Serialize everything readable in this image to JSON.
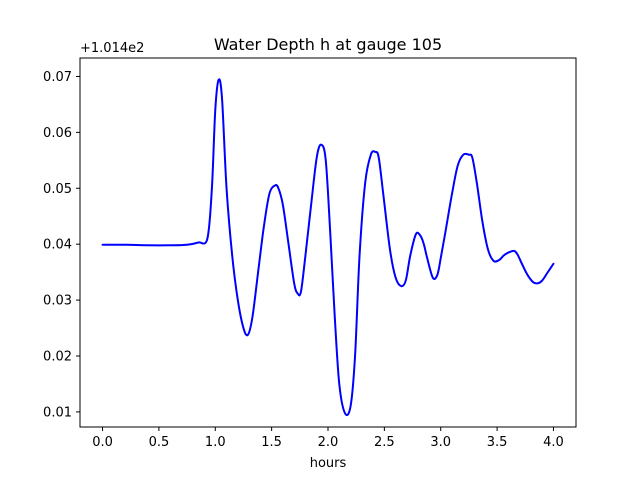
{
  "chart_data": {
    "type": "line",
    "title": "Water Depth h at gauge 105",
    "xlabel": "hours",
    "ylabel": "",
    "offset_label": "+1.014e2",
    "xlim": [
      -0.2,
      4.2
    ],
    "ylim": [
      0.0073,
      0.0733
    ],
    "grid": false,
    "legend": "none",
    "xticks": [
      0.0,
      0.5,
      1.0,
      1.5,
      2.0,
      2.5,
      3.0,
      3.5,
      4.0
    ],
    "xtick_labels": [
      "0.0",
      "0.5",
      "1.0",
      "1.5",
      "2.0",
      "2.5",
      "3.0",
      "3.5",
      "4.0"
    ],
    "yticks": [
      0.01,
      0.02,
      0.03,
      0.04,
      0.05,
      0.06,
      0.07
    ],
    "ytick_labels": [
      "0.01",
      "0.02",
      "0.03",
      "0.04",
      "0.05",
      "0.06",
      "0.07"
    ],
    "series": [
      {
        "color": "#0000ff",
        "x": [
          0.0,
          0.2,
          0.4,
          0.6,
          0.75,
          0.85,
          0.93,
          0.97,
          1.0,
          1.03,
          1.06,
          1.1,
          1.15,
          1.2,
          1.25,
          1.29,
          1.33,
          1.38,
          1.43,
          1.48,
          1.53,
          1.56,
          1.6,
          1.65,
          1.7,
          1.73,
          1.76,
          1.8,
          1.85,
          1.9,
          1.94,
          1.98,
          2.02,
          2.06,
          2.1,
          2.15,
          2.2,
          2.24,
          2.28,
          2.33,
          2.38,
          2.42,
          2.45,
          2.49,
          2.55,
          2.6,
          2.65,
          2.69,
          2.73,
          2.78,
          2.82,
          2.85,
          2.88,
          2.93,
          2.97,
          3.0,
          3.04,
          3.1,
          3.15,
          3.2,
          3.25,
          3.28,
          3.32,
          3.37,
          3.42,
          3.47,
          3.52,
          3.56,
          3.6,
          3.65,
          3.68,
          3.72,
          3.77,
          3.82,
          3.86,
          3.9,
          3.95,
          4.0
        ],
        "y": [
          0.0399,
          0.0399,
          0.0398,
          0.0398,
          0.0399,
          0.0403,
          0.041,
          0.05,
          0.064,
          0.0694,
          0.066,
          0.05,
          0.038,
          0.03,
          0.025,
          0.0238,
          0.027,
          0.035,
          0.043,
          0.049,
          0.0505,
          0.05,
          0.047,
          0.04,
          0.033,
          0.0312,
          0.0315,
          0.038,
          0.047,
          0.0555,
          0.0578,
          0.055,
          0.042,
          0.027,
          0.015,
          0.0098,
          0.011,
          0.02,
          0.038,
          0.051,
          0.056,
          0.0565,
          0.0555,
          0.049,
          0.039,
          0.034,
          0.0325,
          0.0335,
          0.038,
          0.0418,
          0.0415,
          0.04,
          0.0375,
          0.034,
          0.0345,
          0.0375,
          0.042,
          0.049,
          0.054,
          0.056,
          0.056,
          0.0555,
          0.051,
          0.044,
          0.039,
          0.037,
          0.0372,
          0.038,
          0.0385,
          0.0388,
          0.0382,
          0.0365,
          0.0345,
          0.0332,
          0.033,
          0.0335,
          0.035,
          0.0365
        ]
      }
    ]
  }
}
